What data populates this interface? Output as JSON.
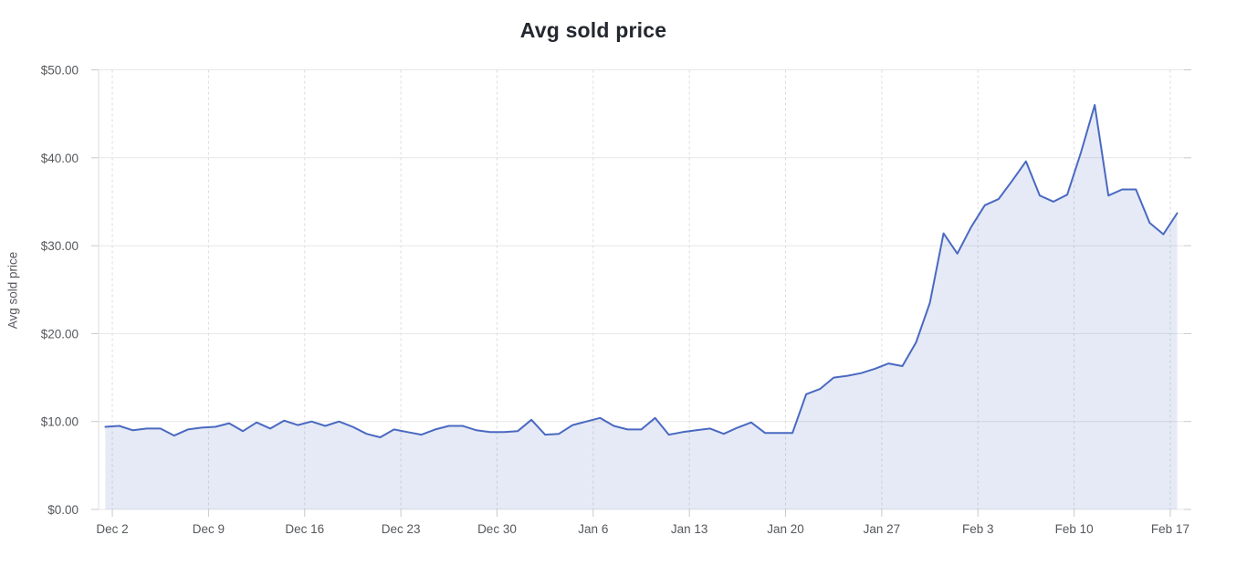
{
  "chart_data": {
    "type": "area",
    "title": "Avg sold price",
    "xlabel": "",
    "ylabel": "Avg sold price",
    "ylim": [
      0,
      50
    ],
    "grid": {
      "horizontal": "solid",
      "vertical": "dashed-weekly"
    },
    "legend": "none",
    "y_ticks": [
      {
        "value": 0,
        "label": "$0.00"
      },
      {
        "value": 10,
        "label": "$10.00"
      },
      {
        "value": 20,
        "label": "$20.00"
      },
      {
        "value": 30,
        "label": "$30.00"
      },
      {
        "value": 40,
        "label": "$40.00"
      },
      {
        "value": 50,
        "label": "$50.00"
      }
    ],
    "x_ticks": [
      {
        "day_offset": 1,
        "label": "Dec 2"
      },
      {
        "day_offset": 8,
        "label": "Dec 9"
      },
      {
        "day_offset": 15,
        "label": "Dec 16"
      },
      {
        "day_offset": 22,
        "label": "Dec 23"
      },
      {
        "day_offset": 29,
        "label": "Dec 30"
      },
      {
        "day_offset": 36,
        "label": "Jan 6"
      },
      {
        "day_offset": 43,
        "label": "Jan 13"
      },
      {
        "day_offset": 50,
        "label": "Jan 20"
      },
      {
        "day_offset": 57,
        "label": "Jan 27"
      },
      {
        "day_offset": 64,
        "label": "Feb 3"
      },
      {
        "day_offset": 71,
        "label": "Feb 10"
      },
      {
        "day_offset": 78,
        "label": "Feb 17"
      }
    ],
    "series": [
      {
        "name": "Avg sold price",
        "x": [
          "Dec 1",
          "Dec 2",
          "Dec 3",
          "Dec 4",
          "Dec 5",
          "Dec 6",
          "Dec 7",
          "Dec 8",
          "Dec 9",
          "Dec 10",
          "Dec 11",
          "Dec 12",
          "Dec 13",
          "Dec 14",
          "Dec 15",
          "Dec 16",
          "Dec 17",
          "Dec 18",
          "Dec 19",
          "Dec 20",
          "Dec 21",
          "Dec 22",
          "Dec 23",
          "Dec 24",
          "Dec 25",
          "Dec 26",
          "Dec 27",
          "Dec 28",
          "Dec 29",
          "Dec 30",
          "Dec 31",
          "Jan 1",
          "Jan 2",
          "Jan 3",
          "Jan 4",
          "Jan 5",
          "Jan 6",
          "Jan 7",
          "Jan 8",
          "Jan 9",
          "Jan 10",
          "Jan 11",
          "Jan 12",
          "Jan 13",
          "Jan 14",
          "Jan 15",
          "Jan 16",
          "Jan 17",
          "Jan 18",
          "Jan 19",
          "Jan 20",
          "Jan 21",
          "Jan 22",
          "Jan 23",
          "Jan 24",
          "Jan 25",
          "Jan 26",
          "Jan 27",
          "Jan 28",
          "Jan 29",
          "Jan 30",
          "Jan 31",
          "Feb 1",
          "Feb 2",
          "Feb 3",
          "Feb 4",
          "Feb 5",
          "Feb 6",
          "Feb 7",
          "Feb 8",
          "Feb 9",
          "Feb 10",
          "Feb 11",
          "Feb 12",
          "Feb 13",
          "Feb 14",
          "Feb 15",
          "Feb 16",
          "Feb 17"
        ],
        "values": [
          9.4,
          9.5,
          9.0,
          9.2,
          9.2,
          8.4,
          9.1,
          9.3,
          9.4,
          9.8,
          8.9,
          9.9,
          9.2,
          10.1,
          9.6,
          10.0,
          9.5,
          10.0,
          9.4,
          8.6,
          8.2,
          9.1,
          8.8,
          8.5,
          9.1,
          9.5,
          9.5,
          9.0,
          8.8,
          8.8,
          8.9,
          10.2,
          8.5,
          8.6,
          9.6,
          10.0,
          10.4,
          9.5,
          9.1,
          9.1,
          10.4,
          8.5,
          8.8,
          9.0,
          9.2,
          8.6,
          9.3,
          9.9,
          8.7,
          8.7,
          8.7,
          13.1,
          13.7,
          15.0,
          15.2,
          15.5,
          16.0,
          16.6,
          16.3,
          19.0,
          23.5,
          31.4,
          29.1,
          32.1,
          34.6,
          35.3,
          37.4,
          39.6,
          35.7,
          35.0,
          35.8,
          40.6,
          46.0,
          35.7,
          36.4,
          36.4,
          32.6,
          31.3,
          33.7
        ]
      }
    ]
  },
  "colors": {
    "line": "#4a69c1",
    "area_fill": "rgba(74,105,193,0.14)",
    "title_text": "#23272e",
    "axis_text": "#55585c",
    "gridline": "#e7e7e7",
    "dashed_gridline": "#dcdcdc",
    "tick_mark": "#c9c9c9",
    "axis_line": "#dcdcdc",
    "background": "#ffffff"
  }
}
